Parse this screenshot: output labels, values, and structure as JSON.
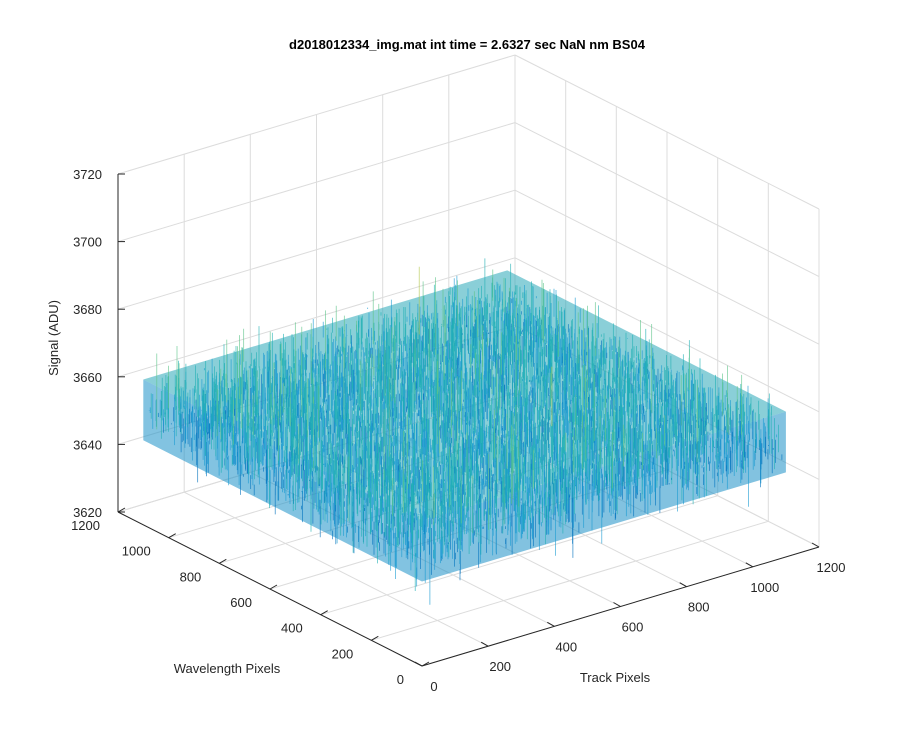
{
  "chart_data": {
    "type": "surface",
    "title": "d2018012334_img.mat int time = 2.6327 sec  NaN nm BS04",
    "xlabel": "Track Pixels",
    "ylabel": "Wavelength Pixels",
    "zlabel": "Signal (ADU)",
    "xlim": [
      0,
      1200
    ],
    "ylim": [
      0,
      1200
    ],
    "zlim": [
      3620,
      3720
    ],
    "x_ticks": [
      0,
      200,
      400,
      600,
      800,
      1000,
      1200
    ],
    "y_ticks": [
      0,
      200,
      400,
      600,
      800,
      1000,
      1200
    ],
    "z_ticks": [
      3620,
      3640,
      3660,
      3680,
      3700,
      3720
    ],
    "x_tick_labels": [
      "0",
      "200",
      "400",
      "600",
      "800",
      "1000",
      "1200"
    ],
    "y_tick_labels": [
      "0",
      "200",
      "400",
      "600",
      "800",
      "1000",
      "1200"
    ],
    "z_tick_labels": [
      "3620",
      "3640",
      "3660",
      "3680",
      "3700",
      "3720"
    ],
    "surface_extent": {
      "x": [
        0,
        1100
      ],
      "y": [
        0,
        1100
      ]
    },
    "signal_mean": 3655,
    "signal_spread": [
      3630,
      3690
    ],
    "colormap": "parula",
    "colors": [
      "#0072bd",
      "#1b9bd1",
      "#21b0b4",
      "#5ec48a",
      "#b5c84f",
      "#e2b73a"
    ],
    "grid": true
  }
}
